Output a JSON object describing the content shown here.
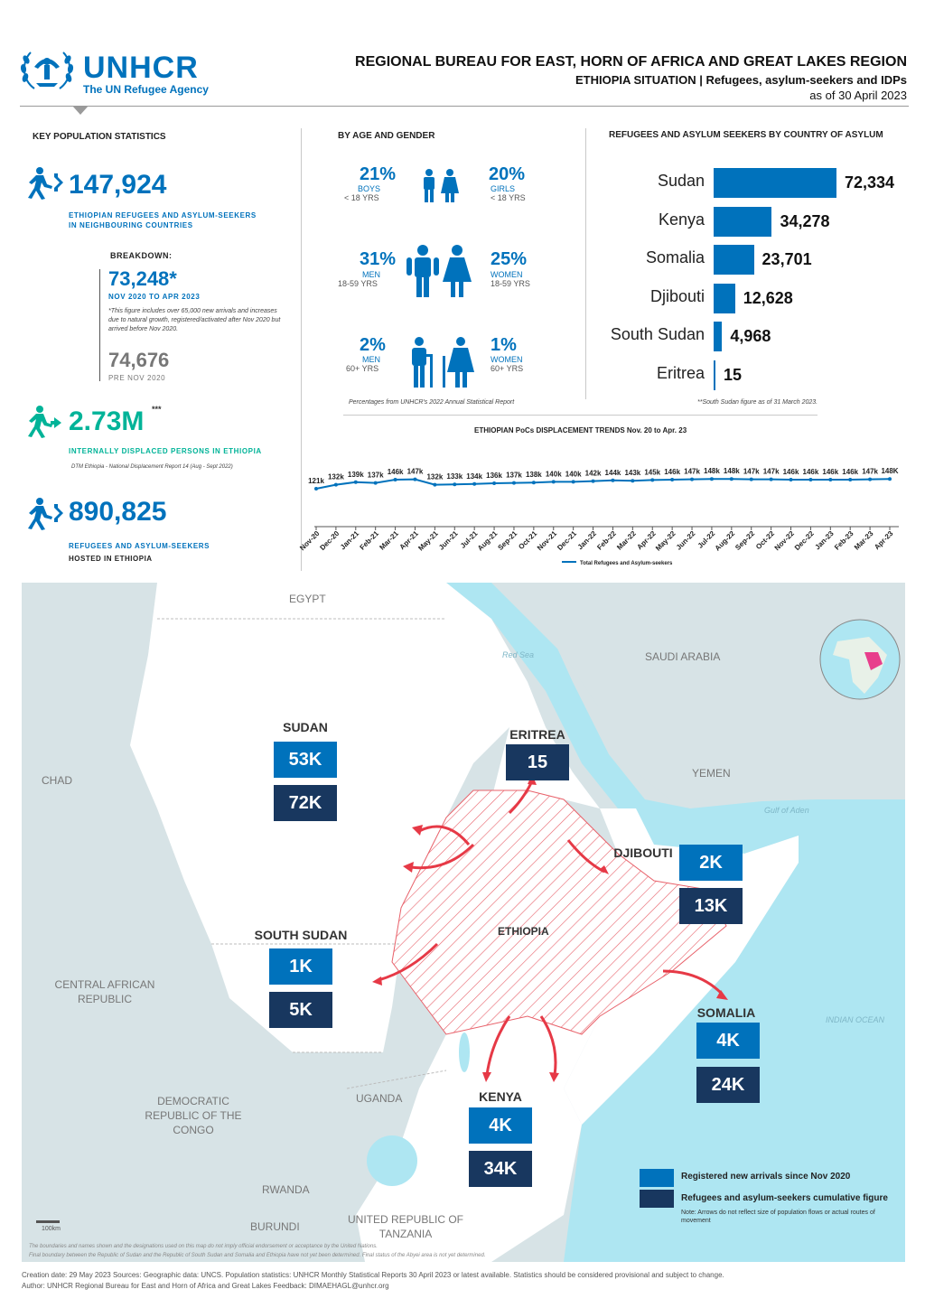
{
  "header": {
    "logo": "UNHCR",
    "logo_sub": "The UN Refugee Agency",
    "title": "REGIONAL BUREAU FOR EAST, HORN OF AFRICA AND GREAT LAKES REGION",
    "subtitle": "ETHIOPIA SITUATION | Refugees, asylum-seekers and IDPs",
    "date": "as of 30 April 2023"
  },
  "key_stats": {
    "title": "KEY POPULATION STATISTICS",
    "refugees_abroad": {
      "value": "147,924",
      "caption_1": "ETHIOPIAN REFUGEES AND ASYLUM-SEEKERS",
      "caption_2": "IN NEIGHBOURING COUNTRIES"
    },
    "breakdown_label": "BREAKDOWN:",
    "new_since": {
      "value": "73,248*",
      "caption": "NOV 2020 TO APR 2023",
      "note": "*This figure includes over 65,000 new arrivals and increases due to natural growth, registered/activated after Nov 2020 but arrived before Nov 2020."
    },
    "pre": {
      "value": "74,676",
      "caption": "PRE NOV 2020"
    },
    "idps": {
      "value": "2.73M",
      "sup": "***",
      "caption": "INTERNALLY DISPLACED PERSONS IN ETHIOPIA",
      "source": "DTM Ethiopia - National Displacement Report 14 (Aug - Sept 2022)"
    },
    "hosted": {
      "value": "890,825",
      "caption": "REFUGEES AND ASYLUM-SEEKERS",
      "caption_2": "HOSTED IN ETHIOPIA"
    }
  },
  "age_gender": {
    "title": "BY AGE AND GENDER",
    "boys": {
      "pct": "21%",
      "label": "BOYS",
      "sub": "< 18 YRS"
    },
    "girls": {
      "pct": "20%",
      "label": "GIRLS",
      "sub": "< 18 YRS"
    },
    "men": {
      "pct": "31%",
      "label": "MEN",
      "sub": "18-59 YRS"
    },
    "women": {
      "pct": "25%",
      "label": "WOMEN",
      "sub": "18-59 YRS"
    },
    "men60": {
      "pct": "2%",
      "label": "MEN",
      "sub": "60+ YRS"
    },
    "women60": {
      "pct": "1%",
      "label": "WOMEN",
      "sub": "60+ YRS"
    },
    "source": "Percentages from UNHCR's 2022 Annual Statistical Report"
  },
  "country_chart": {
    "title": "REFUGEES AND ASYLUM SEEKERS BY COUNTRY OF ASYLUM",
    "note": "**South Sudan figure as of 31 March 2023.",
    "rows": [
      {
        "country": "Sudan",
        "display": "72,334"
      },
      {
        "country": "Kenya",
        "display": "34,278"
      },
      {
        "country": "Somalia",
        "display": "23,701"
      },
      {
        "country": "Djibouti",
        "display": "12,628"
      },
      {
        "country": "South Sudan",
        "display": "4,968"
      },
      {
        "country": "Eritrea",
        "display": "15"
      }
    ]
  },
  "chart_data": [
    {
      "type": "bar",
      "title": "REFUGEES AND ASYLUM SEEKERS BY COUNTRY OF ASYLUM",
      "categories": [
        "Sudan",
        "Kenya",
        "Somalia",
        "Djibouti",
        "South Sudan",
        "Eritrea"
      ],
      "values": [
        72334,
        34278,
        23701,
        12628,
        4968,
        15
      ],
      "orientation": "horizontal"
    },
    {
      "type": "line",
      "title": "ETHIOPIAN PoCs DISPLACEMENT TRENDS Nov. 20 to Apr. 23",
      "x": [
        "Nov-20",
        "Dec-20",
        "Jan-21",
        "Feb-21",
        "Mar-21",
        "Apr-21",
        "May-21",
        "Jun-21",
        "Jul-21",
        "Aug-21",
        "Sep-21",
        "Oct-21",
        "Nov-21",
        "Dec-21",
        "Jan-22",
        "Feb-22",
        "Mar-22",
        "Apr-22",
        "May-22",
        "Jun-22",
        "Jul-22",
        "Aug-22",
        "Sep-22",
        "Oct-22",
        "Nov-22",
        "Dec-22",
        "Jan-23",
        "Feb-23",
        "Mar-23",
        "Apr-23"
      ],
      "labels": [
        "121k",
        "132k",
        "139k",
        "137k",
        "146k",
        "147k",
        "132k",
        "133k",
        "134k",
        "136k",
        "137k",
        "138k",
        "140k",
        "140k",
        "142k",
        "144k",
        "143k",
        "145k",
        "146k",
        "147k",
        "148k",
        "148k",
        "147k",
        "147k",
        "146k",
        "146k",
        "146k",
        "146k",
        "147k",
        "148K"
      ],
      "values": [
        121,
        132,
        139,
        137,
        146,
        147,
        132,
        133,
        134,
        136,
        137,
        138,
        140,
        140,
        142,
        144,
        143,
        145,
        146,
        147,
        148,
        148,
        147,
        147,
        146,
        146,
        146,
        146,
        147,
        148
      ],
      "series": [
        {
          "name": "Total Refugees and Asylum-seekers"
        }
      ]
    }
  ],
  "map": {
    "countries": {
      "egypt": "EGYPT",
      "saudi": "SAUDI ARABIA",
      "yemen": "YEMEN",
      "chad": "CHAD",
      "car": "CENTRAL AFRICAN REPUBLIC",
      "drc": "DEMOCRATIC REPUBLIC OF THE CONGO",
      "uganda": "UGANDA",
      "rwanda": "RWANDA",
      "burundi": "BURUNDI",
      "tanzania": "UNITED REPUBLIC OF TANZANIA",
      "ethiopia": "ETHIOPIA"
    },
    "seas": {
      "red": "Red Sea",
      "aden": "Gulf of Aden",
      "indian": "INDIAN OCEAN"
    },
    "boxes": {
      "sudan": {
        "name": "SUDAN",
        "new": "53K",
        "cum": "72K"
      },
      "eritrea": {
        "name": "ERITREA",
        "cum": "15"
      },
      "djibouti": {
        "name": "DJIBOUTI",
        "new": "2K",
        "cum": "13K"
      },
      "south_sudan": {
        "name": "SOUTH SUDAN",
        "new": "1K",
        "cum": "5K"
      },
      "somalia": {
        "name": "SOMALIA",
        "new": "4K",
        "cum": "24K"
      },
      "kenya": {
        "name": "KENYA",
        "new": "4K",
        "cum": "34K"
      }
    },
    "legend": {
      "new": "Registered new arrivals since Nov 2020",
      "cum": "Refugees and asylum-seekers cumulative figure",
      "note": "Note: Arrows do not reflect size of population flows or actual routes of movement"
    },
    "scale": "100km",
    "disclaimer_1": "The boundaries and names shown and the designations used on this map do not imply official endorsement or acceptance by the United Nations.",
    "disclaimer_2": "Final boundary between the Republic of Sudan and the Republic of South Sudan and Somalia and Ethiopia have not yet been determined. Final status of the Abyei area is not yet determined."
  },
  "footer": {
    "line1": "Creation date: 29 May 2023    Sources: Geographic data: UNCS. Population statistics: UNHCR Monthly Statistical Reports 30 April 2023 or latest available. Statistics should be considered provisional and subject to change.",
    "line2": "Author: UNHCR Regional Bureau for East and Horn of Africa and Great Lakes Feedback: DIMAEHAGL@unhcr.org"
  },
  "colors": {
    "primary": "#0072bc",
    "navy": "#18375f",
    "teal": "#00b398",
    "arrow": "#e63946"
  },
  "icons": [
    "unhcr-laurel-logo",
    "running-person-icon",
    "family-icon",
    "elderly-icon"
  ]
}
